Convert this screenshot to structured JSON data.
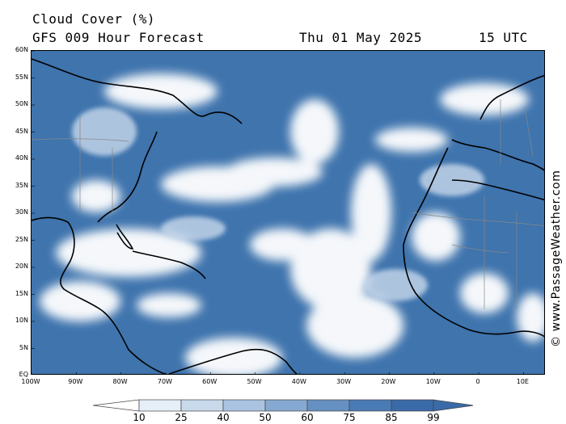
{
  "header": {
    "title": "Cloud Cover (%)",
    "subtitle": "GFS 009 Hour Forecast",
    "date": "Thu 01 May 2025",
    "time": "15 UTC"
  },
  "map": {
    "lat_labels": [
      "60N",
      "55N",
      "50N",
      "45N",
      "40N",
      "35N",
      "30N",
      "25N",
      "20N",
      "15N",
      "10N",
      "5N",
      "EQ"
    ],
    "lon_labels": [
      "100W",
      "90W",
      "80W",
      "70W",
      "60W",
      "50W",
      "40W",
      "30W",
      "20W",
      "10W",
      "0",
      "10E"
    ]
  },
  "colorbar": {
    "labels": [
      "10",
      "25",
      "40",
      "50",
      "60",
      "75",
      "85",
      "99"
    ],
    "colors": [
      "#ffffff",
      "#e6eef7",
      "#c9d9ec",
      "#a9c3e0",
      "#86a9d1",
      "#6690c2",
      "#4a7bb6",
      "#3a6aa8"
    ]
  },
  "credit": "© www.PassageWeather.com",
  "colors": {
    "cloud_dense": "#3f74ad",
    "cloud_light": "#ffffff",
    "coast": "#000000",
    "border": "#888888"
  }
}
